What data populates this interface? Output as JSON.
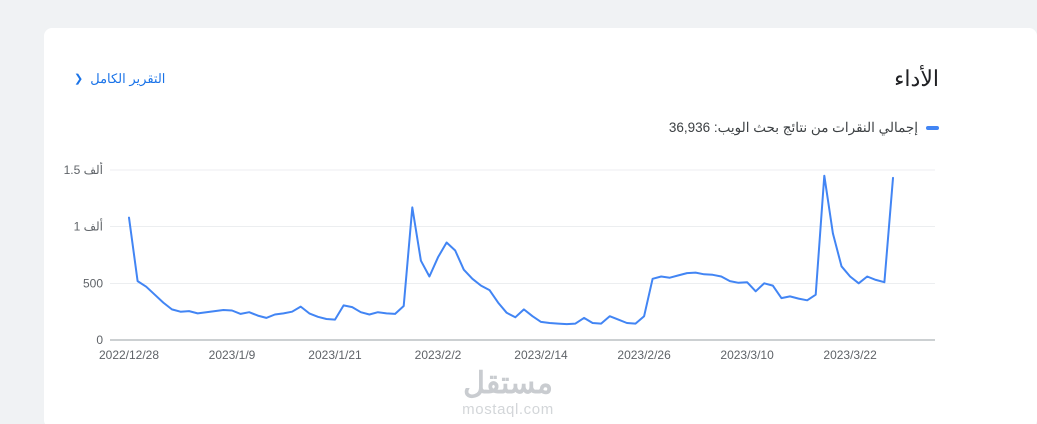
{
  "page": {
    "background_color": "#f0f2f4"
  },
  "card": {
    "title": "الأداء",
    "full_report_link_label": "التقرير الكامل",
    "chevron_glyph": "❮",
    "link_color": "#1a73e8"
  },
  "legend": {
    "label": "إجمالي النقرات من نتائج بحث الويب: 36,936",
    "marker_color": "#4285f4"
  },
  "watermark": {
    "name": "مستقل",
    "domain": "mostaql.com"
  },
  "chart_data": {
    "type": "line",
    "title": "",
    "series_name": "إجمالي النقرات من نتائج بحث الويب",
    "total_clicks_label": "36,936",
    "line_color": "#4285f4",
    "x_start_date": "2022/12/28",
    "x_frequency": "daily",
    "values": [
      1080,
      520,
      470,
      400,
      330,
      270,
      250,
      255,
      235,
      245,
      255,
      265,
      260,
      230,
      245,
      215,
      195,
      225,
      235,
      250,
      295,
      235,
      205,
      185,
      180,
      305,
      290,
      245,
      225,
      245,
      235,
      230,
      300,
      1170,
      700,
      560,
      730,
      860,
      790,
      620,
      540,
      480,
      440,
      330,
      240,
      200,
      270,
      210,
      160,
      150,
      145,
      140,
      145,
      195,
      150,
      145,
      210,
      180,
      150,
      145,
      210,
      540,
      560,
      550,
      570,
      590,
      595,
      580,
      575,
      560,
      520,
      505,
      510,
      430,
      500,
      480,
      370,
      385,
      365,
      350,
      400,
      1450,
      941,
      650,
      560,
      500,
      560,
      530,
      510,
      1430
    ],
    "x_ticks": [
      {
        "index": 0,
        "label": "2022/12/28"
      },
      {
        "index": 12,
        "label": "2023/1/9"
      },
      {
        "index": 24,
        "label": "2023/1/21"
      },
      {
        "index": 36,
        "label": "2023/2/2"
      },
      {
        "index": 48,
        "label": "2023/2/14"
      },
      {
        "index": 60,
        "label": "2023/2/26"
      },
      {
        "index": 72,
        "label": "2023/3/10"
      },
      {
        "index": 84,
        "label": "2023/3/22"
      }
    ],
    "y_ticks": [
      {
        "value": 0,
        "label": "0"
      },
      {
        "value": 500,
        "label": "500"
      },
      {
        "value": 1000,
        "label": "1 ألف"
      },
      {
        "value": 1500,
        "label": "1.5 ألف"
      }
    ],
    "ylim": [
      0,
      1500
    ],
    "grid": "horizontal",
    "legend_position": "top-right"
  }
}
